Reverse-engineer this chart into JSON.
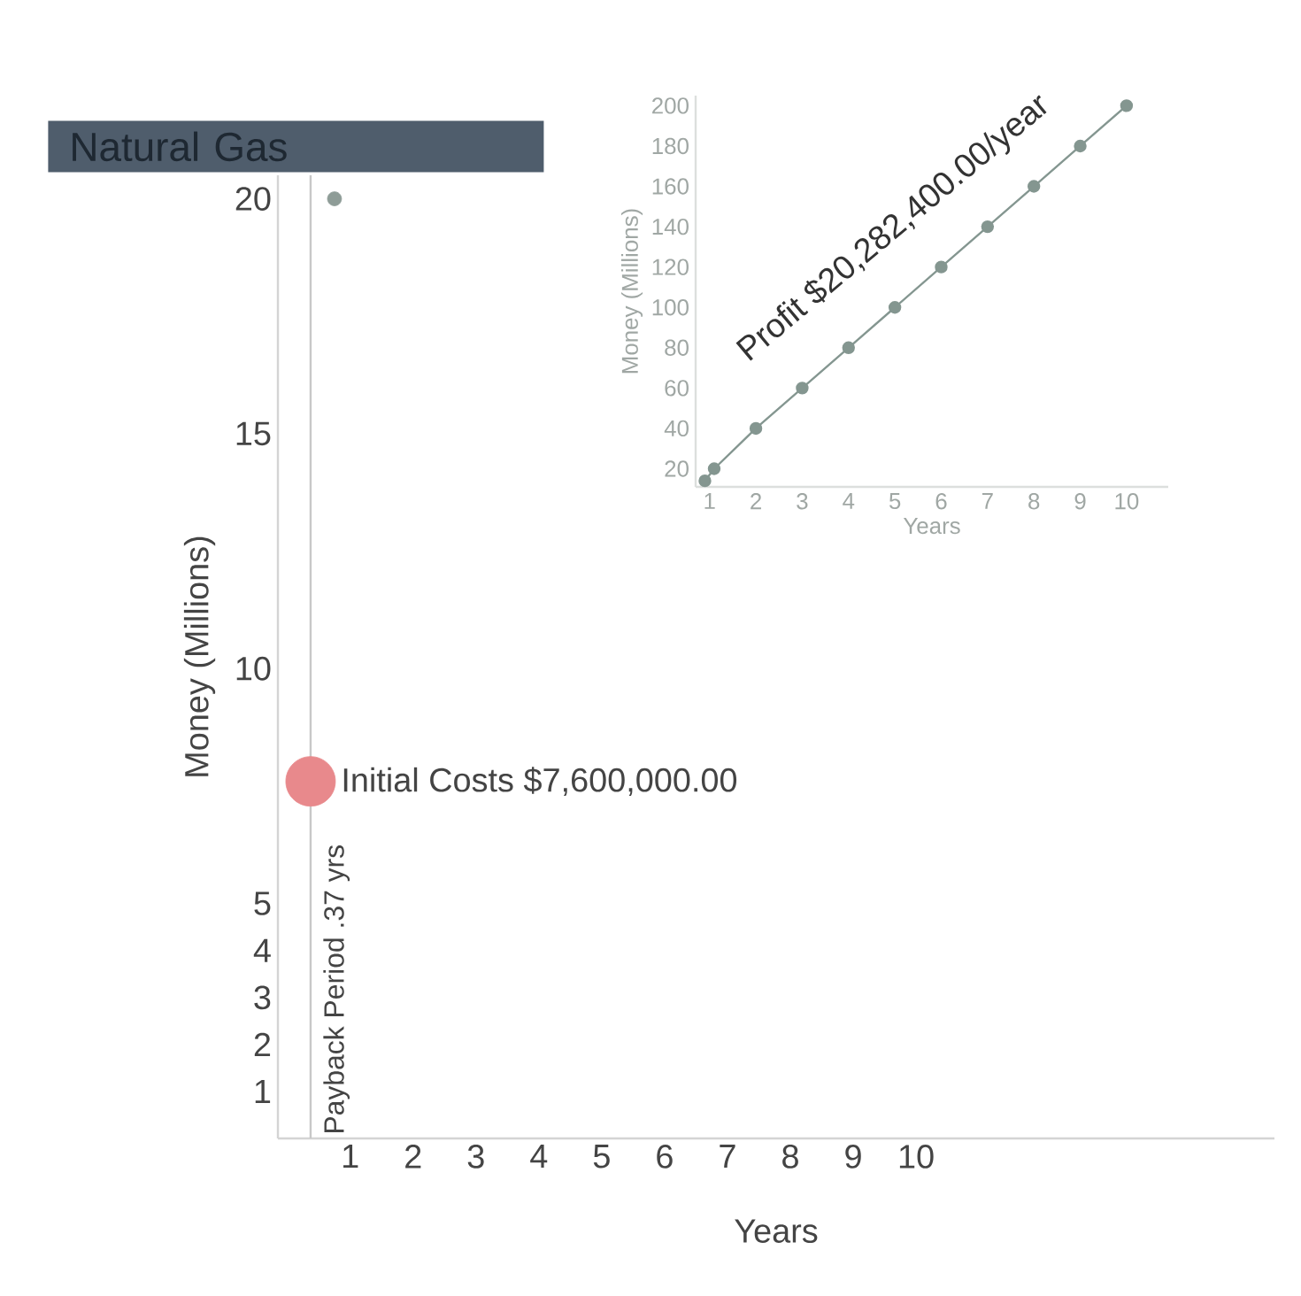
{
  "chart_data": [
    {
      "type": "scatter",
      "title": "Natural Gas",
      "xlabel": "Years",
      "ylabel": "Money (Millions)",
      "xlim": [
        -0.15,
        15.7
      ],
      "ylim": [
        0,
        20.5
      ],
      "xticks": [
        1,
        2,
        3,
        4,
        5,
        6,
        7,
        8,
        9,
        10
      ],
      "yticks": [
        1,
        2,
        3,
        4,
        5,
        10,
        15,
        20
      ],
      "series": [
        {
          "type": "bubble",
          "x": [
            0.75,
            0.37
          ],
          "values": [
            20,
            7.6
          ],
          "sizes": [
            0.08,
            1
          ],
          "colors": [
            "#8e9c97",
            "#e8898c"
          ]
        }
      ],
      "ref_lines": [
        {
          "axis": "x",
          "value": 0.37,
          "label": "Payback Period .37 yrs",
          "color": "#c8c8c8"
        }
      ],
      "annotations": [
        {
          "text": "Initial Costs $7,600,000.00",
          "x": 0.37,
          "y": 7.6
        }
      ]
    },
    {
      "type": "line",
      "xlabel": "Years",
      "ylabel": "Money (Millions)",
      "xlim": [
        0.7,
        10.9
      ],
      "ylim": [
        11,
        205
      ],
      "xticks": [
        1,
        2,
        3,
        4,
        5,
        6,
        7,
        8,
        9,
        10
      ],
      "yticks": [
        20,
        40,
        60,
        80,
        100,
        120,
        140,
        160,
        180,
        200
      ],
      "marker": "circle",
      "color": "#849690",
      "x": [
        0.9,
        1.1,
        2,
        3,
        4,
        5,
        6,
        7,
        8,
        9,
        10
      ],
      "values": [
        14,
        20,
        40,
        60,
        80,
        100,
        120,
        140,
        160,
        180,
        200
      ],
      "annotations": [
        "Profit $20,282,400.00/year"
      ]
    }
  ]
}
